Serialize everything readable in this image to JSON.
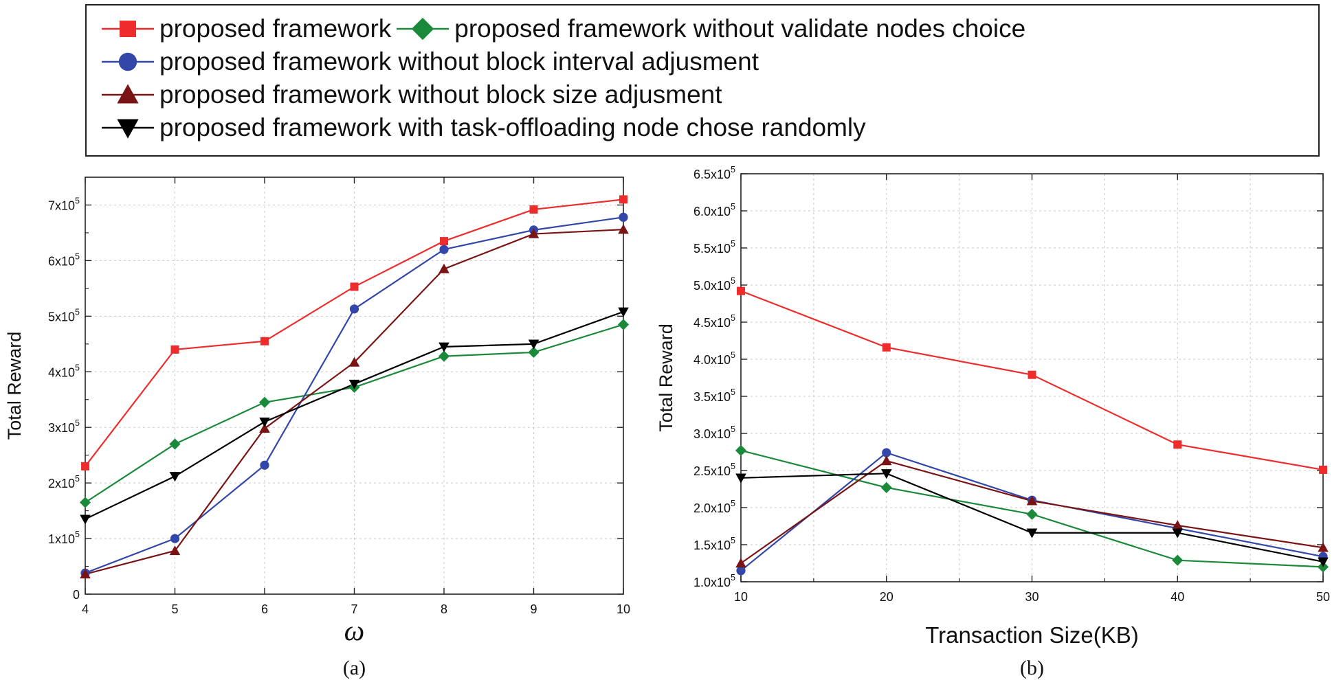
{
  "legend": {
    "rows": [
      [
        0,
        1
      ],
      [
        2
      ],
      [
        3
      ],
      [
        4
      ]
    ]
  },
  "colors": {
    "red": "#ee2c2c",
    "green": "#1a8a3a",
    "blue": "#3347a8",
    "darkred": "#7a1414",
    "black": "#000000",
    "grid": "#c8c8c8"
  },
  "chart_data": [
    {
      "type": "line",
      "caption": "(a)",
      "xlabel": "ω",
      "ylabel": "Total Reward",
      "x": [
        4,
        5,
        6,
        7,
        8,
        9,
        10
      ],
      "xlim": [
        4,
        10
      ],
      "ylim": [
        0,
        750000
      ],
      "xticks": [
        "4",
        "5",
        "6",
        "7",
        "8",
        "9",
        "10"
      ],
      "yticks": [
        {
          "value": 0,
          "mant": "0",
          "exp": ""
        },
        {
          "value": 100000,
          "mant": "1x10",
          "exp": "5"
        },
        {
          "value": 200000,
          "mant": "2x10",
          "exp": "5"
        },
        {
          "value": 300000,
          "mant": "3x10",
          "exp": "5"
        },
        {
          "value": 400000,
          "mant": "4x10",
          "exp": "5"
        },
        {
          "value": 500000,
          "mant": "5x10",
          "exp": "5"
        },
        {
          "value": 600000,
          "mant": "6x10",
          "exp": "5"
        },
        {
          "value": 700000,
          "mant": "7x10",
          "exp": "5"
        }
      ],
      "grid": true,
      "series": [
        {
          "name": "proposed framework",
          "color": "#ee2c2c",
          "marker": "square",
          "values": [
            230000,
            440000,
            455000,
            553000,
            635000,
            692000,
            710000
          ]
        },
        {
          "name": "proposed framework without validate nodes choice",
          "color": "#1a8a3a",
          "marker": "diamond",
          "values": [
            165000,
            270000,
            345000,
            372000,
            428000,
            435000,
            485000
          ]
        },
        {
          "name": "proposed framework without  block interval adjusment",
          "color": "#3347a8",
          "marker": "circle",
          "values": [
            38000,
            100000,
            232000,
            513000,
            620000,
            655000,
            678000
          ]
        },
        {
          "name": "proposed framework without  block size adjusment",
          "color": "#7a1414",
          "marker": "triangle-up",
          "values": [
            36000,
            78000,
            298000,
            417000,
            585000,
            648000,
            656000
          ]
        },
        {
          "name": "proposed framework with task-offloading node chose  randomly",
          "color": "#000000",
          "marker": "triangle-down",
          "values": [
            135000,
            212000,
            310000,
            378000,
            445000,
            450000,
            508000
          ]
        }
      ]
    },
    {
      "type": "line",
      "caption": "(b)",
      "xlabel": "Transaction Size(KB)",
      "ylabel": "Total Reward",
      "x": [
        10,
        20,
        30,
        40,
        50
      ],
      "xlim": [
        10,
        50
      ],
      "ylim": [
        100000,
        650000
      ],
      "xticks": [
        "10",
        "20",
        "30",
        "40",
        "50"
      ],
      "yticks": [
        {
          "value": 100000,
          "mant": "1.0x10",
          "exp": "5"
        },
        {
          "value": 150000,
          "mant": "1.5x10",
          "exp": "5"
        },
        {
          "value": 200000,
          "mant": "2.0x10",
          "exp": "5"
        },
        {
          "value": 250000,
          "mant": "2.5x10",
          "exp": "5"
        },
        {
          "value": 300000,
          "mant": "3.0x10",
          "exp": "5"
        },
        {
          "value": 350000,
          "mant": "3.5x10",
          "exp": "5"
        },
        {
          "value": 400000,
          "mant": "4.0x10",
          "exp": "5"
        },
        {
          "value": 450000,
          "mant": "4.5x10",
          "exp": "5"
        },
        {
          "value": 500000,
          "mant": "5.0x10",
          "exp": "5"
        },
        {
          "value": 550000,
          "mant": "5.5x10",
          "exp": "5"
        },
        {
          "value": 600000,
          "mant": "6.0x10",
          "exp": "5"
        },
        {
          "value": 650000,
          "mant": "6.5x10",
          "exp": "5"
        }
      ],
      "grid": true,
      "series": [
        {
          "name": "proposed framework",
          "color": "#ee2c2c",
          "marker": "square",
          "values": [
            492000,
            416000,
            379000,
            285000,
            251000
          ]
        },
        {
          "name": "proposed framework without validate nodes choice",
          "color": "#1a8a3a",
          "marker": "diamond",
          "values": [
            277000,
            227000,
            191000,
            129000,
            120000
          ]
        },
        {
          "name": "proposed framework without  block interval adjusment",
          "color": "#3347a8",
          "marker": "circle",
          "values": [
            115000,
            274000,
            210000,
            172000,
            134000
          ]
        },
        {
          "name": "proposed framework without  block size adjusment",
          "color": "#7a1414",
          "marker": "triangle-up",
          "values": [
            125000,
            263000,
            209000,
            176000,
            146000
          ]
        },
        {
          "name": "proposed framework with task-offloading node chose  randomly",
          "color": "#000000",
          "marker": "triangle-down",
          "values": [
            240000,
            246000,
            166000,
            166000,
            127000
          ]
        }
      ]
    }
  ]
}
